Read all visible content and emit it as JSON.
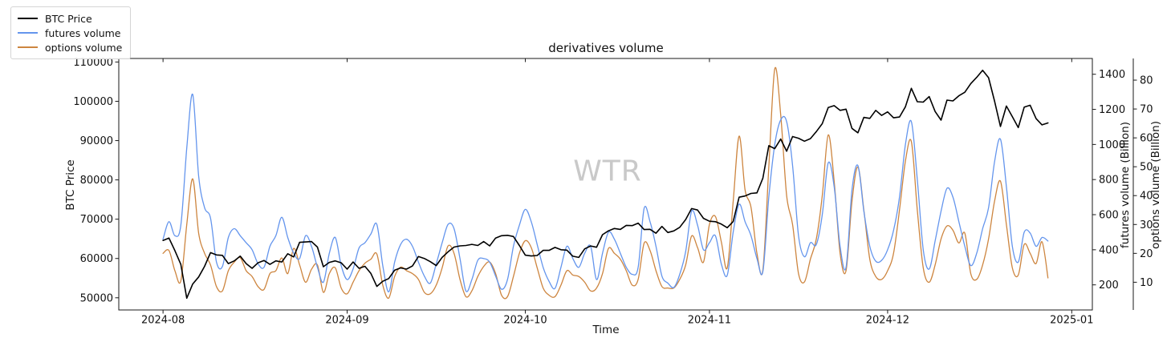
{
  "title": "derivatives volume",
  "watermark": "WTR",
  "legend": {
    "items": [
      {
        "label": "BTC Price",
        "color": "#000000"
      },
      {
        "label": "futures volume",
        "color": "#6495ed"
      },
      {
        "label": "options volume",
        "color": "#cd853f"
      }
    ]
  },
  "axes": {
    "x": {
      "label": "Time",
      "ticks": [
        "2024-08",
        "2024-09",
        "2024-10",
        "2024-11",
        "2024-12",
        "2025-01"
      ]
    },
    "y_left": {
      "label": "BTC Price",
      "ticks": [
        50000,
        60000,
        70000,
        80000,
        90000,
        100000,
        110000
      ],
      "range": [
        46900,
        110900
      ]
    },
    "y_right_futures": {
      "label": "futures volume (Billion)",
      "ticks": [
        200,
        400,
        600,
        800,
        1000,
        1200,
        1400
      ],
      "range": [
        57,
        1490
      ]
    },
    "y_right_options": {
      "label": "options volume (Billion)",
      "ticks": [
        10,
        20,
        30,
        40,
        50,
        60,
        70,
        80
      ],
      "range": [
        0.4,
        87.5
      ]
    }
  },
  "chart_data": {
    "type": "line",
    "title": "derivatives volume",
    "xlabel": "Time",
    "start_date": "2024-08-01",
    "frequency": "daily",
    "x_tick_day_offsets": [
      0,
      31,
      61,
      92,
      122,
      153
    ],
    "x_tick_labels": [
      "2024-08",
      "2024-09",
      "2024-10",
      "2024-11",
      "2024-12",
      "2025-01"
    ],
    "grid": false,
    "legend_position": "upper-left-outside",
    "series": [
      {
        "name": "BTC Price",
        "axis": "y_left",
        "color": "#000000",
        "linewidth": 1.6,
        "smooth": false,
        "values": [
          64600,
          65200,
          62000,
          58500,
          49900,
          53500,
          55300,
          58000,
          61500,
          60900,
          60800,
          58700,
          59400,
          60600,
          58700,
          57500,
          58900,
          59500,
          58500,
          59400,
          59100,
          61200,
          60400,
          64100,
          64200,
          64300,
          62900,
          57900,
          59000,
          59400,
          58900,
          57300,
          59100,
          57500,
          58000,
          56200,
          52900,
          54200,
          54900,
          57000,
          57600,
          57300,
          58100,
          60500,
          60000,
          59200,
          58200,
          60300,
          61700,
          62900,
          63200,
          63300,
          63600,
          63300,
          64300,
          63200,
          65200,
          65800,
          65900,
          65600,
          63300,
          60840,
          60630,
          60750,
          62070,
          62060,
          62820,
          62230,
          62130,
          60580,
          60280,
          62450,
          63190,
          62850,
          66050,
          67040,
          67620,
          67400,
          68420,
          68360,
          69000,
          67370,
          67420,
          66430,
          68160,
          66600,
          67010,
          67930,
          69910,
          72700,
          72340,
          70220,
          69480,
          69370,
          68740,
          67830,
          69400,
          75600,
          75900,
          76550,
          76700,
          80450,
          88700,
          87950,
          90400,
          87300,
          91030,
          90600,
          89850,
          90500,
          92300,
          94300,
          98400,
          98900,
          97700,
          98000,
          93100,
          91980,
          95900,
          95650,
          97700,
          96400,
          97300,
          95800,
          96000,
          98600,
          103300,
          99900,
          99800,
          101200,
          97400,
          95200,
          100300,
          100100,
          101400,
          102300,
          104500,
          106100,
          107900,
          106000,
          100100,
          93600,
          98800,
          96100,
          93300,
          98500,
          99000,
          95600,
          94000,
          94500
        ]
      },
      {
        "name": "futures volume",
        "axis": "y_right_futures",
        "color": "#6495ed",
        "linewidth": 1.3,
        "smooth": true,
        "values": [
          460,
          560,
          480,
          540,
          980,
          1285,
          820,
          640,
          580,
          330,
          305,
          470,
          520,
          480,
          440,
          400,
          320,
          300,
          420,
          480,
          585,
          470,
          380,
          350,
          480,
          420,
          300,
          215,
          380,
          470,
          310,
          230,
          290,
          410,
          440,
          490,
          545,
          310,
          160,
          330,
          430,
          460,
          420,
          330,
          250,
          210,
          320,
          440,
          545,
          520,
          350,
          165,
          230,
          340,
          350,
          330,
          250,
          175,
          230,
          420,
          540,
          630,
          560,
          430,
          300,
          220,
          180,
          300,
          420,
          350,
          300,
          380,
          420,
          230,
          380,
          500,
          460,
          380,
          300,
          260,
          300,
          635,
          560,
          420,
          250,
          210,
          185,
          260,
          390,
          620,
          540,
          400,
          440,
          480,
          320,
          255,
          500,
          660,
          560,
          480,
          350,
          276,
          700,
          1000,
          1140,
          1130,
          880,
          480,
          360,
          440,
          430,
          600,
          895,
          760,
          420,
          300,
          740,
          880,
          620,
          420,
          335,
          340,
          400,
          510,
          700,
          1000,
          1130,
          800,
          400,
          290,
          450,
          620,
          750,
          700,
          560,
          420,
          310,
          380,
          520,
          640,
          900,
          1030,
          760,
          420,
          330,
          500,
          495,
          420,
          470,
          450
        ]
      },
      {
        "name": "options volume",
        "axis": "y_right_options",
        "color": "#cd853f",
        "linewidth": 1.3,
        "smooth": true,
        "values": [
          20,
          21,
          14,
          10.5,
          30,
          45.8,
          27,
          20,
          16,
          8.5,
          7,
          14,
          17,
          18.5,
          14,
          12,
          8.5,
          7.5,
          13,
          14,
          18.4,
          13,
          21.7,
          16,
          10,
          14.5,
          16,
          6.5,
          13,
          15,
          8,
          6,
          10,
          14,
          16.6,
          18,
          19.8,
          9,
          4.5,
          12,
          15.2,
          14,
          13,
          11,
          6.5,
          6,
          9,
          15,
          22.6,
          20,
          11,
          5,
          7,
          12,
          15.5,
          17,
          13,
          5.5,
          5,
          12,
          20,
          24.4,
          22,
          15,
          8,
          5.5,
          5,
          9,
          14,
          12.5,
          12,
          10,
          7,
          8,
          13,
          21.7,
          20,
          18,
          14,
          9,
          11,
          23.5,
          21,
          14,
          8.5,
          8,
          8,
          11,
          16,
          26,
          22,
          17,
          30,
          32.8,
          24,
          15,
          38,
          60.6,
          42,
          36,
          20,
          14.3,
          50,
          83.9,
          68,
          40,
          30,
          13,
          10.1,
          18,
          25,
          40,
          61,
          45,
          20,
          14,
          38,
          49.9,
          35,
          18,
          12,
          11,
          14,
          20,
          35,
          52,
          58.7,
          35,
          15,
          10,
          16,
          25,
          29.5,
          28,
          23.6,
          27,
          13,
          11,
          16,
          25,
          38,
          45,
          30,
          15,
          12.5,
          23.1,
          20,
          16.5,
          24,
          11.5
        ]
      }
    ]
  }
}
